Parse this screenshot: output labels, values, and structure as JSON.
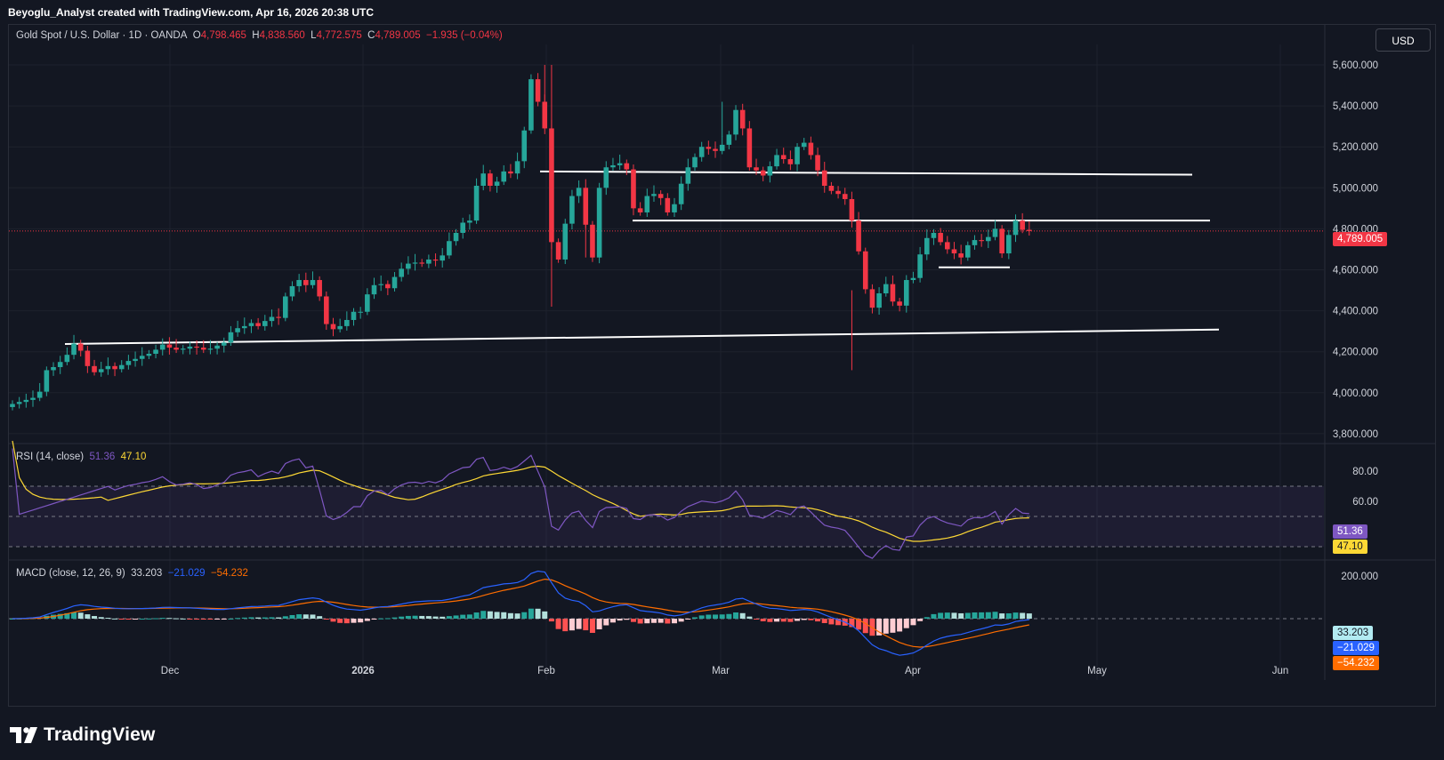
{
  "header": {
    "created_line": "Beyoglu_Analyst created with TradingView.com, Apr 16, 2026 20:38 UTC"
  },
  "main": {
    "symbol": "Gold Spot / U.S. Dollar · 1D · OANDA",
    "o_label": "O",
    "o_value": "4,798.465",
    "h_label": "H",
    "h_value": "4,838.560",
    "l_label": "L",
    "l_value": "4,772.575",
    "c_label": "C",
    "c_value": "4,789.005",
    "change": "−1.935 (−0.04%)",
    "price_tag": "4,789.005",
    "currency": "USD"
  },
  "rsi": {
    "label": "RSI (14, close)",
    "value": "51.36",
    "ma": "47.10"
  },
  "macd": {
    "label": "MACD (close, 12, 26, 9)",
    "hist": "33.203",
    "macd": "−21.029",
    "signal": "−54.232"
  },
  "brand": {
    "name": "TradingView"
  },
  "colors": {
    "up": "#26a69a",
    "down": "#f23645",
    "rsi_line": "#7e57c2",
    "rsi_ma": "#fdd835",
    "macd_line": "#2962ff",
    "signal_line": "#ff6d00",
    "bg": "#131722"
  },
  "chart_data": [
    {
      "type": "candlestick",
      "title": "Gold Spot / U.S. Dollar · 1D · OANDA",
      "ylim": [
        3760,
        5680
      ],
      "y_ticks": [
        "5,600.000",
        "5,400.000",
        "5,200.000",
        "5,000.000",
        "4,800.000",
        "4,600.000",
        "4,400.000",
        "4,200.000",
        "4,000.000",
        "3,800.000"
      ],
      "x_ticks": [
        "Dec",
        "2026",
        "Feb",
        "Mar",
        "Apr",
        "May",
        "Jun"
      ],
      "last_price": 4789.005,
      "closes": [
        3945,
        3955,
        3965,
        3975,
        4005,
        4110,
        4125,
        4150,
        4185,
        4240,
        4205,
        4130,
        4100,
        4115,
        4130,
        4115,
        4135,
        4155,
        4165,
        4180,
        4190,
        4210,
        4235,
        4220,
        4210,
        4215,
        4225,
        4220,
        4210,
        4215,
        4230,
        4245,
        4295,
        4315,
        4325,
        4340,
        4325,
        4350,
        4370,
        4365,
        4470,
        4520,
        4550,
        4525,
        4550,
        4470,
        4335,
        4310,
        4325,
        4355,
        4395,
        4395,
        4480,
        4525,
        4530,
        4510,
        4565,
        4605,
        4630,
        4635,
        4630,
        4650,
        4645,
        4670,
        4740,
        4780,
        4830,
        4840,
        5010,
        5070,
        5010,
        5030,
        5080,
        5070,
        5130,
        5280,
        5530,
        5420,
        5290,
        4735,
        4650,
        4825,
        4960,
        5000,
        4820,
        4660,
        5000,
        5100,
        5110,
        5120,
        5090,
        4900,
        4880,
        4960,
        4970,
        4950,
        4880,
        4920,
        5020,
        5100,
        5150,
        5200,
        5190,
        5180,
        5210,
        5260,
        5380,
        5290,
        5100,
        5085,
        5060,
        5105,
        5160,
        5140,
        5115,
        5200,
        5220,
        5160,
        5085,
        5010,
        4985,
        4970,
        4945,
        4840,
        4690,
        4505,
        4415,
        4485,
        4530,
        4445,
        4425,
        4550,
        4560,
        4675,
        4755,
        4780,
        4735,
        4700,
        4680,
        4660,
        4720,
        4745,
        4740,
        4760,
        4800,
        4680,
        4770,
        4840,
        4795,
        4789
      ],
      "support_resistance": [
        5072,
        4840,
        4250,
        4612
      ]
    },
    {
      "type": "line",
      "title": "RSI (14, close)",
      "ylim": [
        0,
        100
      ],
      "y_ticks": [
        "80.00",
        "60.00"
      ],
      "bands": [
        70,
        50,
        30
      ],
      "series": [
        {
          "name": "RSI",
          "last": 51.36
        },
        {
          "name": "MA",
          "last": 47.1
        }
      ]
    },
    {
      "type": "line",
      "title": "MACD (close, 12, 26, 9)",
      "y_ticks": [
        "200.000"
      ],
      "series": [
        {
          "name": "Histogram",
          "last": 33.203
        },
        {
          "name": "MACD",
          "last": -21.029
        },
        {
          "name": "Signal",
          "last": -54.232
        }
      ]
    }
  ]
}
